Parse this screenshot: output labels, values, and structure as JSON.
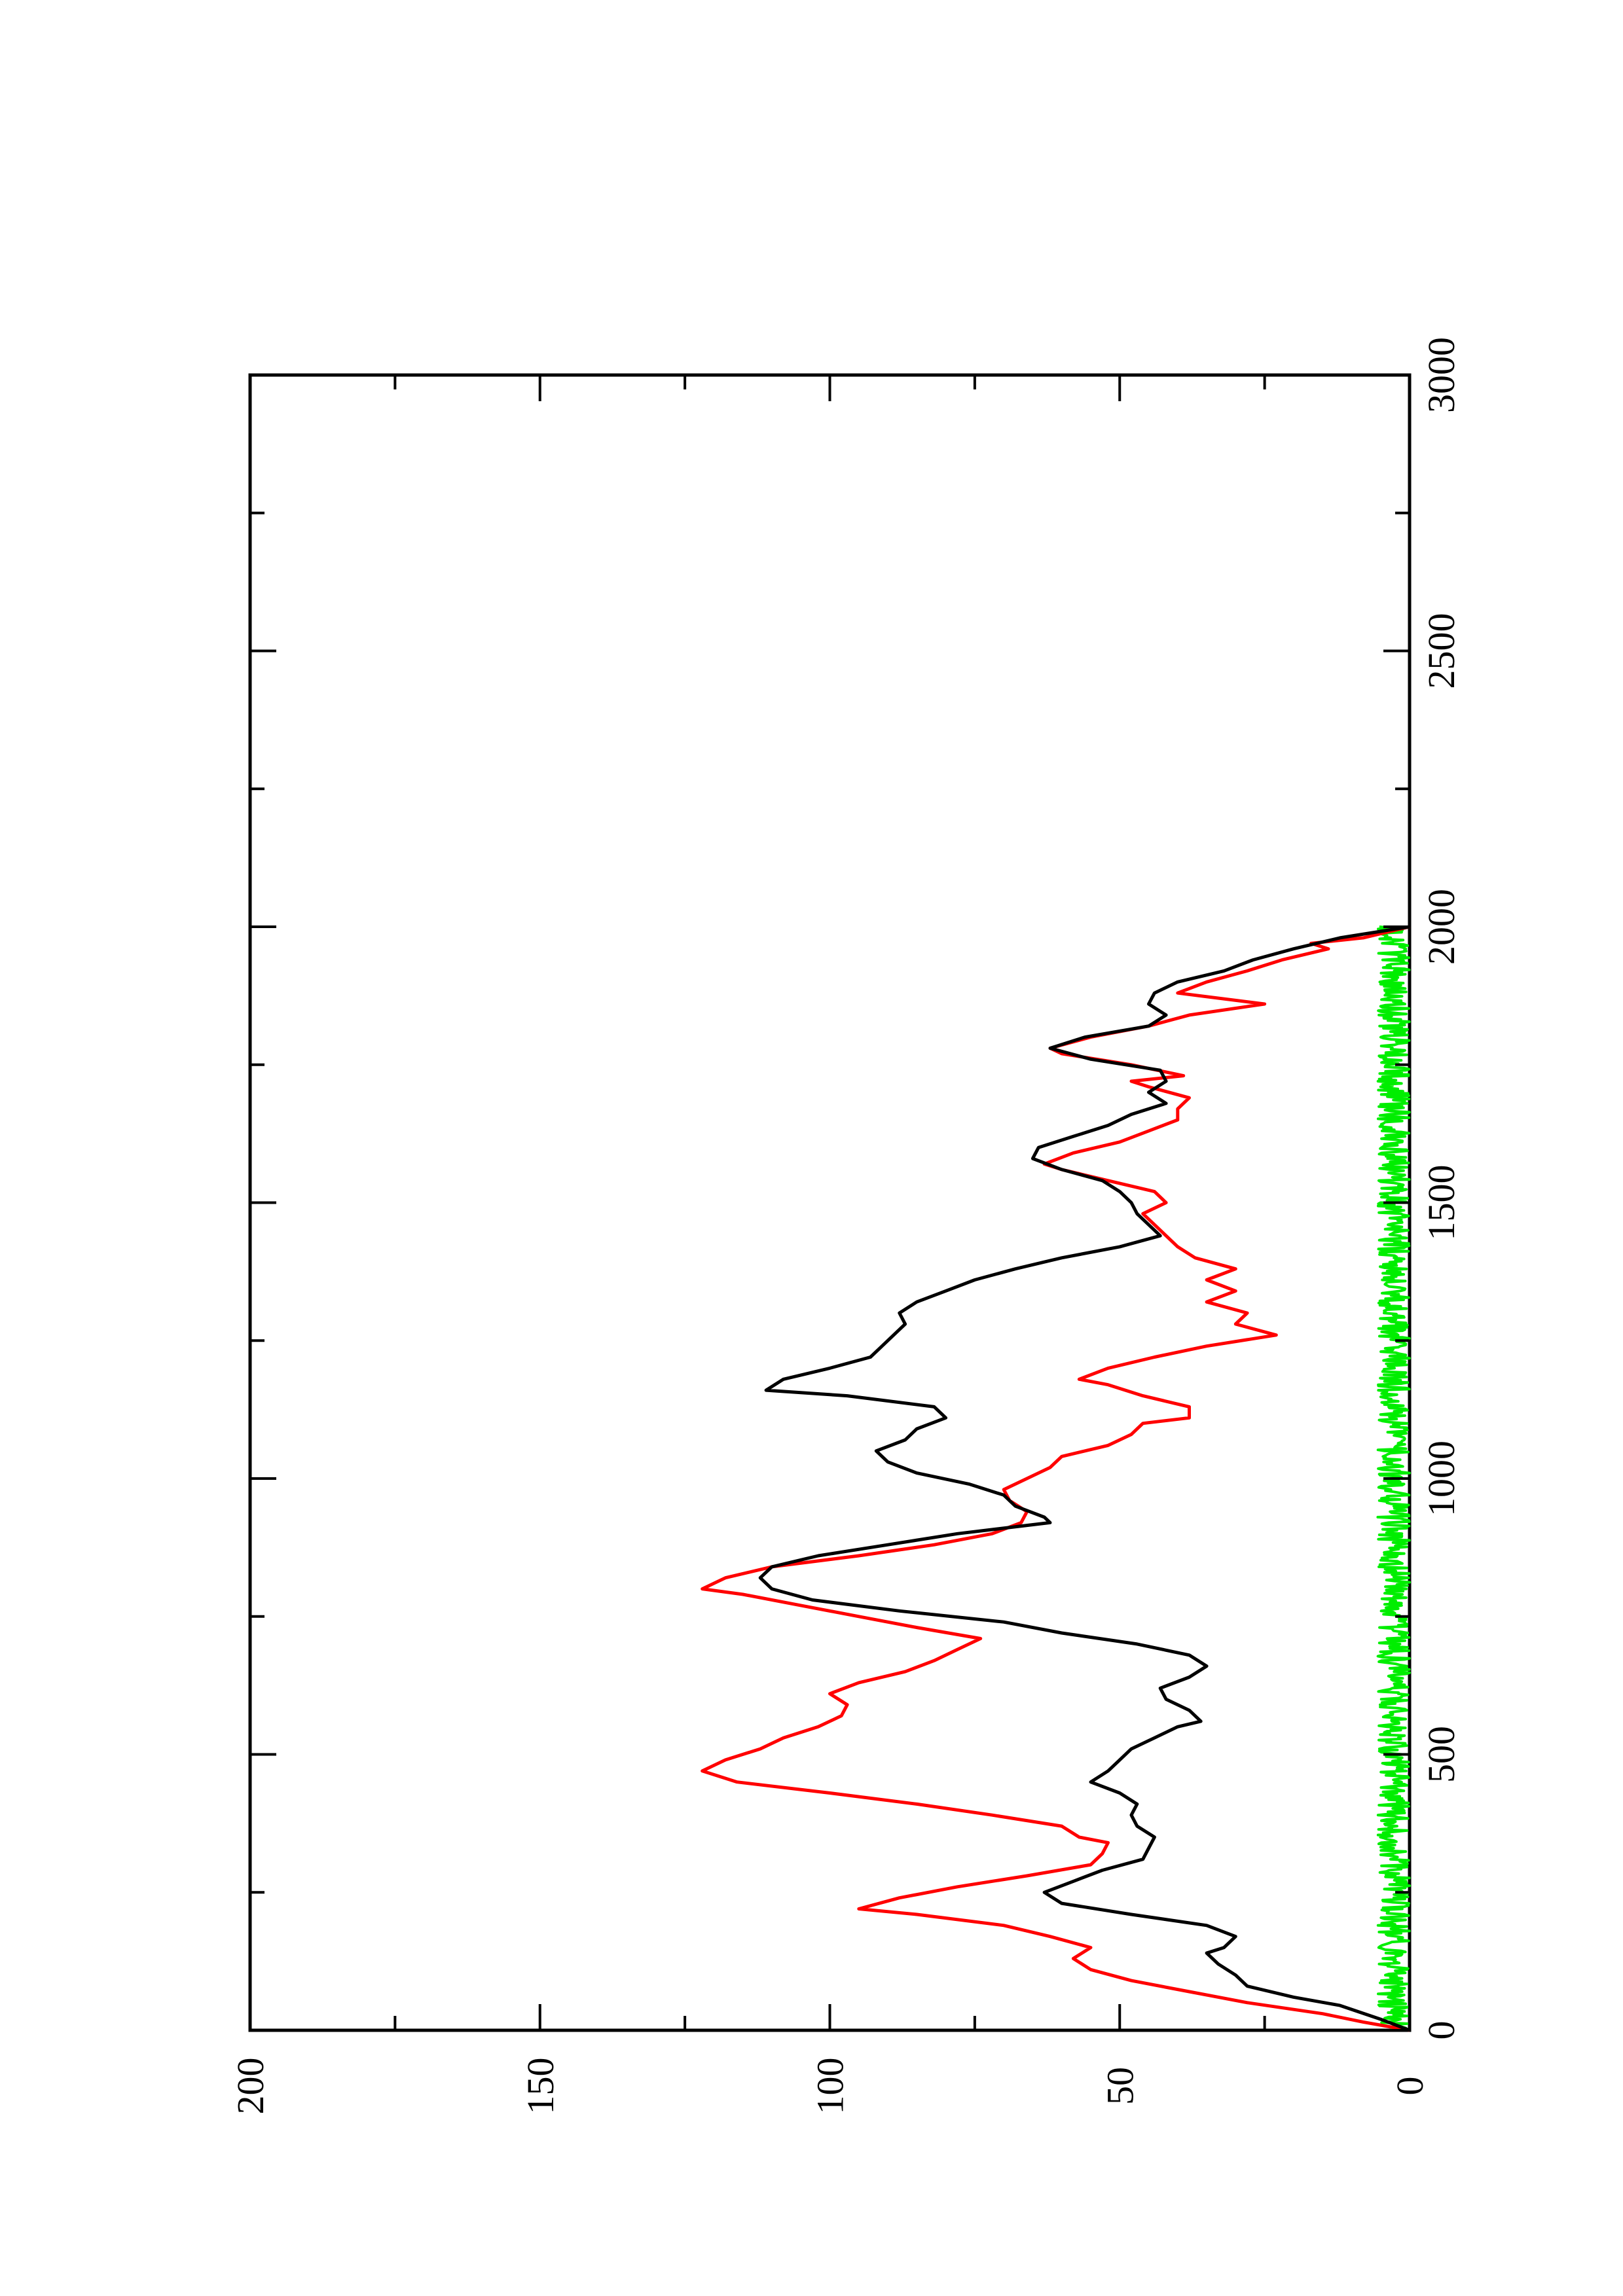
{
  "chart_data": {
    "type": "line",
    "orientation": "rotated-90-ccw",
    "title": "",
    "xlabel": "",
    "ylabel": "",
    "xlim": [
      0,
      3000
    ],
    "ylim": [
      0,
      200
    ],
    "x_ticks": [
      "0",
      "500",
      "1000",
      "1500",
      "2000",
      "2500",
      "3000"
    ],
    "y_ticks": [
      "0",
      "50",
      "100",
      "150",
      "200"
    ],
    "grid": false,
    "legend": "none",
    "series": [
      {
        "color": "#000000",
        "points": [
          [
            0,
            0
          ],
          [
            20,
            5
          ],
          [
            45,
            12
          ],
          [
            60,
            20
          ],
          [
            80,
            28
          ],
          [
            100,
            30
          ],
          [
            120,
            33
          ],
          [
            140,
            35
          ],
          [
            150,
            32
          ],
          [
            170,
            30
          ],
          [
            190,
            35
          ],
          [
            210,
            48
          ],
          [
            230,
            60
          ],
          [
            250,
            63
          ],
          [
            270,
            58
          ],
          [
            290,
            53
          ],
          [
            310,
            46
          ],
          [
            330,
            45
          ],
          [
            350,
            44
          ],
          [
            370,
            47
          ],
          [
            390,
            48
          ],
          [
            410,
            47
          ],
          [
            430,
            50
          ],
          [
            450,
            55
          ],
          [
            470,
            52
          ],
          [
            490,
            50
          ],
          [
            510,
            48
          ],
          [
            530,
            44
          ],
          [
            550,
            40
          ],
          [
            560,
            36
          ],
          [
            580,
            38
          ],
          [
            600,
            42
          ],
          [
            620,
            43
          ],
          [
            640,
            38
          ],
          [
            660,
            35
          ],
          [
            680,
            38
          ],
          [
            700,
            47
          ],
          [
            720,
            60
          ],
          [
            740,
            70
          ],
          [
            760,
            88
          ],
          [
            780,
            103
          ],
          [
            800,
            110
          ],
          [
            820,
            112
          ],
          [
            840,
            110
          ],
          [
            860,
            102
          ],
          [
            880,
            90
          ],
          [
            900,
            78
          ],
          [
            920,
            62
          ],
          [
            930,
            63
          ],
          [
            950,
            68
          ],
          [
            970,
            70
          ],
          [
            990,
            76
          ],
          [
            1010,
            85
          ],
          [
            1030,
            90
          ],
          [
            1050,
            92
          ],
          [
            1070,
            87
          ],
          [
            1090,
            85
          ],
          [
            1110,
            80
          ],
          [
            1130,
            82
          ],
          [
            1150,
            97
          ],
          [
            1160,
            111
          ],
          [
            1180,
            108
          ],
          [
            1200,
            100
          ],
          [
            1220,
            93
          ],
          [
            1240,
            91
          ],
          [
            1260,
            89
          ],
          [
            1280,
            87
          ],
          [
            1300,
            88
          ],
          [
            1320,
            85
          ],
          [
            1340,
            80
          ],
          [
            1360,
            75
          ],
          [
            1380,
            68
          ],
          [
            1400,
            60
          ],
          [
            1420,
            50
          ],
          [
            1440,
            43
          ],
          [
            1460,
            45
          ],
          [
            1480,
            47
          ],
          [
            1500,
            48
          ],
          [
            1520,
            50
          ],
          [
            1540,
            53
          ],
          [
            1560,
            60
          ],
          [
            1580,
            65
          ],
          [
            1600,
            64
          ],
          [
            1620,
            58
          ],
          [
            1640,
            52
          ],
          [
            1660,
            48
          ],
          [
            1680,
            42
          ],
          [
            1700,
            45
          ],
          [
            1720,
            42
          ],
          [
            1740,
            43
          ],
          [
            1760,
            55
          ],
          [
            1780,
            62
          ],
          [
            1800,
            56
          ],
          [
            1820,
            45
          ],
          [
            1840,
            42
          ],
          [
            1860,
            45
          ],
          [
            1880,
            44
          ],
          [
            1900,
            40
          ],
          [
            1920,
            32
          ],
          [
            1940,
            27
          ],
          [
            1960,
            20
          ],
          [
            1980,
            12
          ],
          [
            2000,
            0
          ]
        ]
      },
      {
        "color": "#ff0000",
        "points": [
          [
            0,
            0
          ],
          [
            15,
            8
          ],
          [
            30,
            15
          ],
          [
            50,
            28
          ],
          [
            70,
            38
          ],
          [
            90,
            48
          ],
          [
            110,
            55
          ],
          [
            130,
            58
          ],
          [
            150,
            55
          ],
          [
            170,
            62
          ],
          [
            190,
            70
          ],
          [
            210,
            85
          ],
          [
            220,
            95
          ],
          [
            240,
            88
          ],
          [
            260,
            78
          ],
          [
            280,
            66
          ],
          [
            300,
            55
          ],
          [
            320,
            53
          ],
          [
            340,
            52
          ],
          [
            350,
            57
          ],
          [
            370,
            60
          ],
          [
            390,
            72
          ],
          [
            410,
            85
          ],
          [
            430,
            100
          ],
          [
            450,
            116
          ],
          [
            470,
            122
          ],
          [
            490,
            118
          ],
          [
            510,
            112
          ],
          [
            530,
            108
          ],
          [
            550,
            102
          ],
          [
            570,
            98
          ],
          [
            590,
            97
          ],
          [
            610,
            100
          ],
          [
            630,
            95
          ],
          [
            650,
            87
          ],
          [
            670,
            82
          ],
          [
            690,
            78
          ],
          [
            710,
            74
          ],
          [
            730,
            85
          ],
          [
            750,
            95
          ],
          [
            770,
            105
          ],
          [
            790,
            115
          ],
          [
            800,
            122
          ],
          [
            820,
            118
          ],
          [
            840,
            110
          ],
          [
            860,
            95
          ],
          [
            880,
            82
          ],
          [
            900,
            72
          ],
          [
            920,
            67
          ],
          [
            940,
            66
          ],
          [
            960,
            69
          ],
          [
            980,
            70
          ],
          [
            1000,
            66
          ],
          [
            1020,
            62
          ],
          [
            1040,
            60
          ],
          [
            1060,
            52
          ],
          [
            1080,
            48
          ],
          [
            1100,
            46
          ],
          [
            1110,
            38
          ],
          [
            1130,
            38
          ],
          [
            1150,
            46
          ],
          [
            1170,
            52
          ],
          [
            1180,
            57
          ],
          [
            1200,
            52
          ],
          [
            1220,
            44
          ],
          [
            1240,
            35
          ],
          [
            1260,
            23
          ],
          [
            1280,
            30
          ],
          [
            1300,
            28
          ],
          [
            1320,
            35
          ],
          [
            1340,
            30
          ],
          [
            1360,
            35
          ],
          [
            1380,
            30
          ],
          [
            1400,
            37
          ],
          [
            1420,
            40
          ],
          [
            1440,
            42
          ],
          [
            1460,
            44
          ],
          [
            1480,
            46
          ],
          [
            1500,
            42
          ],
          [
            1520,
            44
          ],
          [
            1540,
            52
          ],
          [
            1560,
            60
          ],
          [
            1570,
            63
          ],
          [
            1590,
            58
          ],
          [
            1610,
            50
          ],
          [
            1630,
            45
          ],
          [
            1650,
            40
          ],
          [
            1670,
            40
          ],
          [
            1690,
            38
          ],
          [
            1710,
            45
          ],
          [
            1720,
            48
          ],
          [
            1730,
            39
          ],
          [
            1750,
            48
          ],
          [
            1770,
            60
          ],
          [
            1780,
            62
          ],
          [
            1800,
            55
          ],
          [
            1820,
            45
          ],
          [
            1840,
            38
          ],
          [
            1860,
            25
          ],
          [
            1880,
            40
          ],
          [
            1900,
            35
          ],
          [
            1920,
            28
          ],
          [
            1940,
            22
          ],
          [
            1960,
            14
          ],
          [
            1970,
            17
          ],
          [
            1980,
            8
          ],
          [
            2000,
            0
          ]
        ]
      },
      {
        "color": "#00ee00",
        "points": []
      }
    ]
  }
}
